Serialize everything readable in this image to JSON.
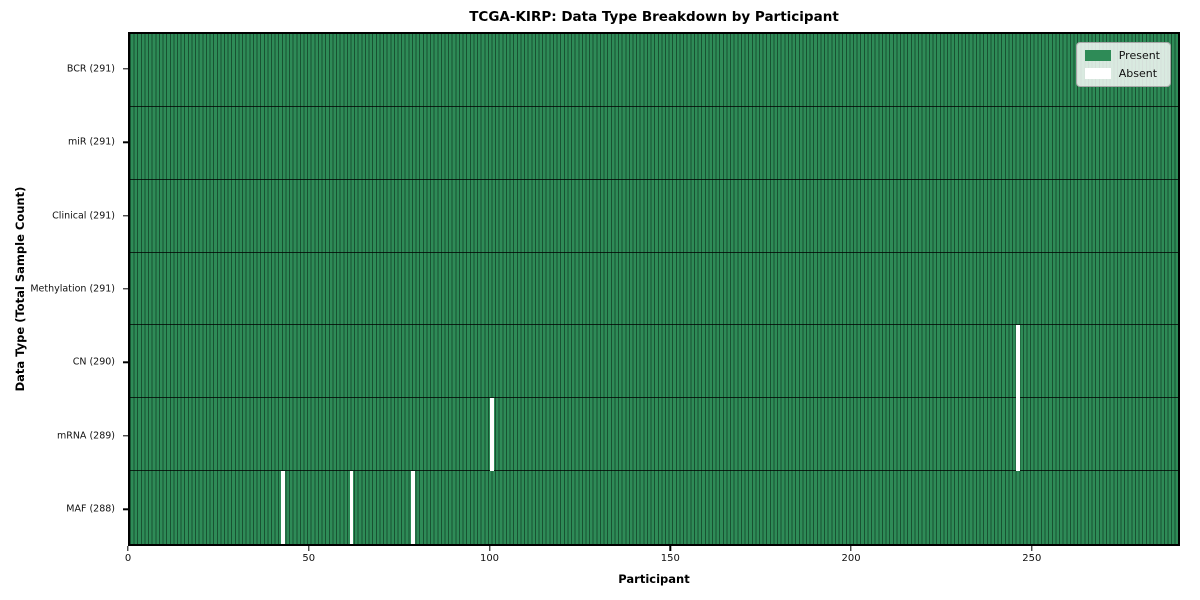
{
  "figure": {
    "title": "TCGA-KIRP: Data Type Breakdown by Participant",
    "xlabel": "Participant",
    "ylabel": "Data Type (Total Sample Count)"
  },
  "legend": {
    "present_label": "Present",
    "absent_label": "Absent"
  },
  "colors": {
    "present": "#2e8b57",
    "absent": "#ffffff",
    "bar_edge": "#143d27",
    "row_separator": "#000000",
    "spine": "#000000",
    "legend_background": "#f2f4f1",
    "legend_border": "#a8a8a8"
  },
  "chart_data": {
    "type": "heatmap",
    "title": "TCGA-KIRP: Data Type Breakdown by Participant",
    "xlabel": "Participant",
    "ylabel": "Data Type (Total Sample Count)",
    "n_participants": 291,
    "xlim": [
      0,
      291
    ],
    "x_ticks": [
      0,
      50,
      100,
      150,
      200,
      250
    ],
    "grid": false,
    "legend_position": "upper right",
    "legend": [
      {
        "label": "Present",
        "color": "#2e8b57"
      },
      {
        "label": "Absent",
        "color": "#ffffff"
      }
    ],
    "rows": [
      {
        "label": "BCR (291)",
        "data_type": "BCR",
        "present_count": 291,
        "absent_participants": []
      },
      {
        "label": "miR (291)",
        "data_type": "miR",
        "present_count": 291,
        "absent_participants": []
      },
      {
        "label": "Clinical (291)",
        "data_type": "Clinical",
        "present_count": 291,
        "absent_participants": []
      },
      {
        "label": "Methylation (291)",
        "data_type": "Methylation",
        "present_count": 291,
        "absent_participants": []
      },
      {
        "label": "CN (290)",
        "data_type": "CN",
        "present_count": 290,
        "absent_participants": [
          246
        ]
      },
      {
        "label": "mRNA (289)",
        "data_type": "mRNA",
        "present_count": 289,
        "absent_participants": [
          100,
          246
        ]
      },
      {
        "label": "MAF (288)",
        "data_type": "MAF",
        "present_count": 288,
        "absent_participants": [
          42,
          61,
          78
        ]
      }
    ]
  }
}
